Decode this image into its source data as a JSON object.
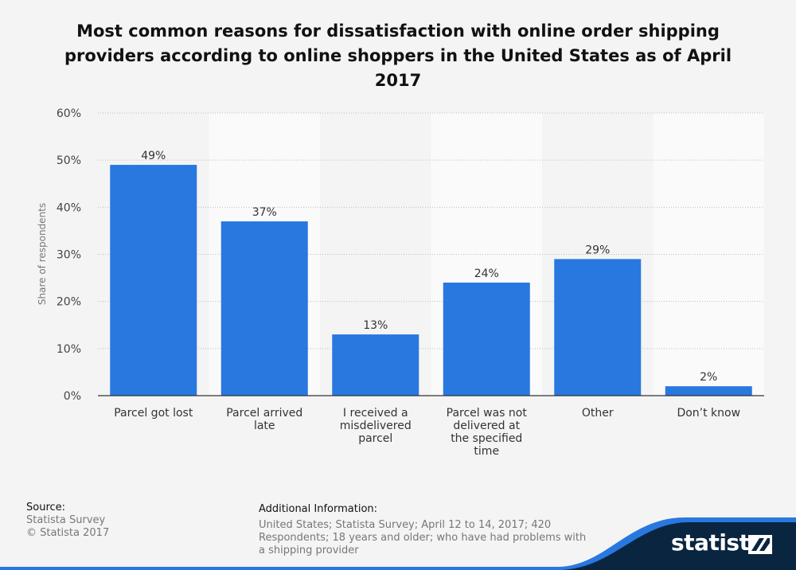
{
  "title_lines": [
    "Most common reasons for dissatisfaction with online order shipping",
    "providers according to online shoppers in the United States as of April",
    "2017"
  ],
  "chart_data": {
    "type": "bar",
    "title": "Most common reasons for dissatisfaction with online order shipping providers according to online shoppers in the United States as of April 2017",
    "categories": [
      [
        "Parcel got lost"
      ],
      [
        "Parcel arrived",
        "late"
      ],
      [
        "I received a",
        "misdelivered",
        "parcel"
      ],
      [
        "Parcel was not",
        "delivered at",
        "the specified",
        "time"
      ],
      [
        "Other"
      ],
      [
        "Don’t know"
      ]
    ],
    "values": [
      49,
      37,
      13,
      24,
      29,
      2
    ],
    "value_labels": [
      "49%",
      "37%",
      "13%",
      "24%",
      "29%",
      "2%"
    ],
    "ylabel": "Share of respondents",
    "ylim": [
      0,
      60
    ],
    "yticks": [
      0,
      10,
      20,
      30,
      40,
      50,
      60
    ],
    "ytick_labels": [
      "0%",
      "10%",
      "20%",
      "30%",
      "40%",
      "50%",
      "60%"
    ],
    "grid": true,
    "bar_color": "#2878e0"
  },
  "footer": {
    "source_header": "Source:",
    "source_lines": [
      "Statista Survey",
      "© Statista 2017"
    ],
    "info_header": "Additional Information:",
    "info_text": "United States; Statista Survey; April 12 to 14, 2017; 420 Respondents; 18 years and older; who have had problems with a shipping provider"
  },
  "brand": {
    "name": "statista",
    "dark_color": "#0a2540",
    "accent_color": "#2878e0"
  }
}
